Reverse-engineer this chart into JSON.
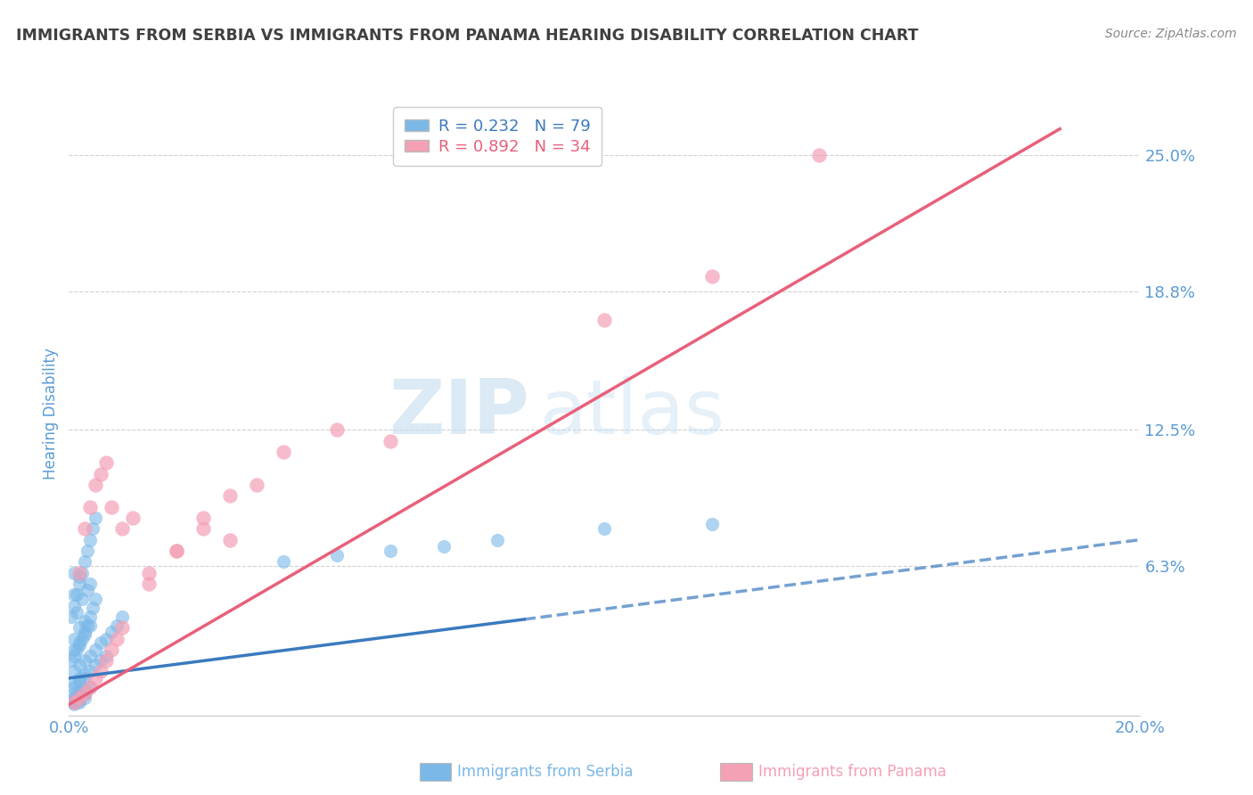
{
  "title": "IMMIGRANTS FROM SERBIA VS IMMIGRANTS FROM PANAMA HEARING DISABILITY CORRELATION CHART",
  "source": "Source: ZipAtlas.com",
  "xlabel_serbia": "Immigrants from Serbia",
  "xlabel_panama": "Immigrants from Panama",
  "ylabel": "Hearing Disability",
  "serbia_R": 0.232,
  "serbia_N": 79,
  "panama_R": 0.892,
  "panama_N": 34,
  "serbia_color": "#7ab8e8",
  "panama_color": "#f4a0b5",
  "serbia_line_color": "#3a7abf",
  "panama_line_color": "#e8607a",
  "xlim": [
    0.0,
    0.2
  ],
  "ylim": [
    -0.005,
    0.27
  ],
  "background_color": "#ffffff",
  "grid_color": "#d0d0d0",
  "title_color": "#404040",
  "label_color": "#5b9bd5",
  "watermark_zip": "ZIP",
  "watermark_atlas": "atlas",
  "serbia_scatter_x": [
    0.0005,
    0.001,
    0.0015,
    0.002,
    0.0025,
    0.003,
    0.0035,
    0.004,
    0.0045,
    0.005,
    0.001,
    0.002,
    0.003,
    0.0015,
    0.0025,
    0.0035,
    0.001,
    0.002,
    0.003,
    0.004,
    0.0005,
    0.001,
    0.0015,
    0.002,
    0.0025,
    0.003,
    0.0035,
    0.004,
    0.0045,
    0.005,
    0.001,
    0.002,
    0.003,
    0.004,
    0.005,
    0.006,
    0.007,
    0.008,
    0.009,
    0.01,
    0.001,
    0.002,
    0.003,
    0.001,
    0.002,
    0.003,
    0.004,
    0.005,
    0.006,
    0.007,
    0.001,
    0.002,
    0.003,
    0.004,
    0.001,
    0.002,
    0.003,
    0.001,
    0.002,
    0.003,
    0.04,
    0.05,
    0.06,
    0.07,
    0.08,
    0.1,
    0.12,
    0.001,
    0.001,
    0.001,
    0.002,
    0.002,
    0.002,
    0.003,
    0.003,
    0.001,
    0.002,
    0.004,
    0.001
  ],
  "serbia_scatter_y": [
    0.04,
    0.045,
    0.05,
    0.055,
    0.06,
    0.065,
    0.07,
    0.075,
    0.08,
    0.085,
    0.03,
    0.035,
    0.038,
    0.042,
    0.048,
    0.052,
    0.025,
    0.028,
    0.032,
    0.036,
    0.02,
    0.022,
    0.025,
    0.027,
    0.03,
    0.033,
    0.036,
    0.04,
    0.044,
    0.048,
    0.015,
    0.018,
    0.02,
    0.022,
    0.025,
    0.028,
    0.03,
    0.033,
    0.036,
    0.04,
    0.01,
    0.012,
    0.014,
    0.008,
    0.01,
    0.012,
    0.015,
    0.018,
    0.02,
    0.022,
    0.005,
    0.006,
    0.007,
    0.008,
    0.003,
    0.004,
    0.005,
    0.002,
    0.002,
    0.003,
    0.065,
    0.068,
    0.07,
    0.072,
    0.075,
    0.08,
    0.082,
    0.001,
    0.0,
    0.002,
    0.001,
    0.003,
    0.004,
    0.005,
    0.006,
    0.06,
    0.058,
    0.055,
    0.05
  ],
  "panama_scatter_x": [
    0.001,
    0.002,
    0.003,
    0.004,
    0.005,
    0.006,
    0.007,
    0.008,
    0.009,
    0.01,
    0.015,
    0.02,
    0.025,
    0.03,
    0.035,
    0.04,
    0.05,
    0.06,
    0.1,
    0.12,
    0.002,
    0.003,
    0.004,
    0.005,
    0.006,
    0.007,
    0.008,
    0.01,
    0.012,
    0.015,
    0.02,
    0.025,
    0.03,
    0.14
  ],
  "panama_scatter_y": [
    0.001,
    0.003,
    0.005,
    0.008,
    0.012,
    0.015,
    0.02,
    0.025,
    0.03,
    0.035,
    0.055,
    0.07,
    0.085,
    0.095,
    0.1,
    0.115,
    0.125,
    0.12,
    0.175,
    0.195,
    0.06,
    0.08,
    0.09,
    0.1,
    0.105,
    0.11,
    0.09,
    0.08,
    0.085,
    0.06,
    0.07,
    0.08,
    0.075,
    0.25
  ],
  "serbia_trend_x": [
    0.0,
    0.2
  ],
  "serbia_trend_y": [
    0.012,
    0.075
  ],
  "panama_trend_x": [
    0.0,
    0.185
  ],
  "panama_trend_y": [
    0.0,
    0.262
  ]
}
